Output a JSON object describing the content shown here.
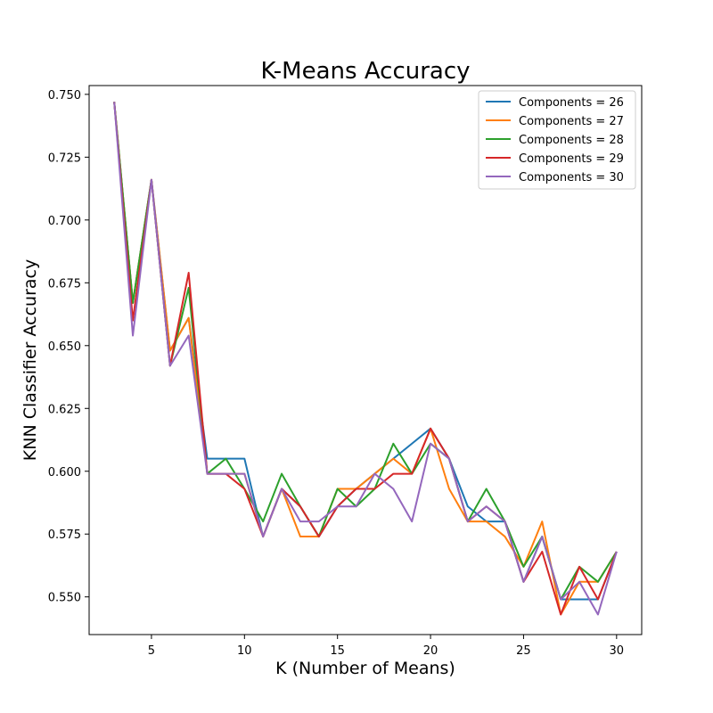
{
  "chart_data": {
    "type": "line",
    "title": "K-Means Accuracy",
    "xlabel": "K (Number of Means)",
    "ylabel": "KNN Classifier Accuracy",
    "xlim": [
      1.65,
      31.35
    ],
    "ylim": [
      0.535,
      0.7535
    ],
    "xticks": [
      5,
      10,
      15,
      20,
      25,
      30
    ],
    "yticks": [
      0.55,
      0.575,
      0.6,
      0.625,
      0.65,
      0.675,
      0.7,
      0.725,
      0.75
    ],
    "ytick_labels": [
      "0.550",
      "0.575",
      "0.600",
      "0.625",
      "0.650",
      "0.675",
      "0.700",
      "0.725",
      "0.750"
    ],
    "grid": false,
    "legend_position": "top-right",
    "x": [
      3,
      4,
      5,
      6,
      7,
      8,
      9,
      10,
      11,
      12,
      13,
      14,
      15,
      16,
      17,
      18,
      19,
      20,
      21,
      22,
      23,
      24,
      25,
      26,
      27,
      28,
      29,
      30
    ],
    "series": [
      {
        "name": "Components = 26",
        "color": "#1f77b4",
        "values": [
          0.747,
          0.667,
          0.716,
          0.648,
          0.661,
          0.605,
          0.605,
          0.605,
          0.574,
          0.593,
          0.586,
          0.574,
          0.586,
          0.593,
          0.599,
          0.605,
          0.611,
          0.617,
          0.605,
          0.586,
          0.58,
          0.58,
          0.556,
          0.574,
          0.549,
          0.549,
          0.549,
          0.568
        ]
      },
      {
        "name": "Components = 27",
        "color": "#ff7f0e",
        "values": [
          0.747,
          0.667,
          0.716,
          0.648,
          0.661,
          0.599,
          0.599,
          0.599,
          0.574,
          0.593,
          0.574,
          0.574,
          0.593,
          0.593,
          0.599,
          0.605,
          0.599,
          0.617,
          0.593,
          0.58,
          0.58,
          0.574,
          0.562,
          0.58,
          0.543,
          0.556,
          0.556,
          0.568
        ]
      },
      {
        "name": "Components = 28",
        "color": "#2ca02c",
        "values": [
          0.747,
          0.667,
          0.716,
          0.642,
          0.673,
          0.599,
          0.605,
          0.593,
          0.58,
          0.599,
          0.586,
          0.574,
          0.593,
          0.586,
          0.593,
          0.611,
          0.599,
          0.611,
          0.605,
          0.58,
          0.593,
          0.58,
          0.562,
          0.574,
          0.549,
          0.562,
          0.556,
          0.568
        ]
      },
      {
        "name": "Components = 29",
        "color": "#d62728",
        "values": [
          0.747,
          0.66,
          0.716,
          0.642,
          0.679,
          0.599,
          0.599,
          0.593,
          0.574,
          0.593,
          0.586,
          0.574,
          0.586,
          0.593,
          0.593,
          0.599,
          0.599,
          0.617,
          0.605,
          0.58,
          0.586,
          0.58,
          0.556,
          0.568,
          0.543,
          0.562,
          0.549,
          0.568
        ]
      },
      {
        "name": "Components = 30",
        "color": "#9467bd",
        "values": [
          0.747,
          0.654,
          0.716,
          0.642,
          0.654,
          0.599,
          0.599,
          0.599,
          0.574,
          0.593,
          0.58,
          0.58,
          0.586,
          0.586,
          0.599,
          0.593,
          0.58,
          0.611,
          0.605,
          0.58,
          0.586,
          0.58,
          0.556,
          0.574,
          0.549,
          0.556,
          0.543,
          0.568
        ]
      }
    ]
  }
}
